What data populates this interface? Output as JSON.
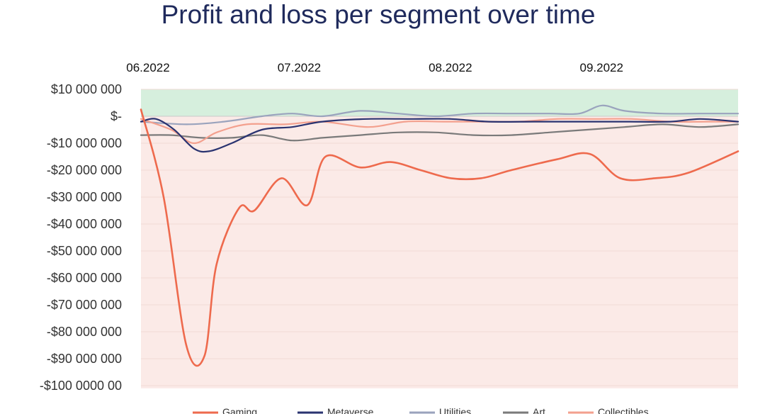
{
  "chart_data": {
    "type": "line",
    "title": "Profit and loss per segment over time",
    "xlabel": "",
    "ylabel": "",
    "x_ticks": [
      "06.2022",
      "07.2022",
      "08.2022",
      "09.2022"
    ],
    "x_tick_positions": [
      0.0,
      1.0,
      2.0,
      3.0
    ],
    "xlim": [
      0.0,
      3.95
    ],
    "y_ticks": [
      10000000,
      0,
      -10000000,
      -20000000,
      -30000000,
      -40000000,
      -50000000,
      -60000000,
      -70000000,
      -80000000,
      -90000000,
      -100000000
    ],
    "y_tick_labels": [
      "$10 000 000",
      "$-",
      "-$10 000 000",
      "-$20 000 000",
      "-$30 000 000",
      "-$40 000 000",
      "-$50 000 000",
      "-$60 000 000",
      "-$70 000 000",
      "-$80 000 000",
      "-$90 000 000",
      "-$100 0000 00"
    ],
    "ylim": [
      -101000000,
      10000000
    ],
    "positive_region_color": "#d6efdd",
    "negative_region_color": "#fbeae7",
    "grid": true,
    "legend_position": "bottom",
    "series": [
      {
        "name": "Gaming",
        "color": "#ee6a4d",
        "x": [
          0.0,
          0.15,
          0.3,
          0.42,
          0.5,
          0.65,
          0.75,
          0.93,
          1.1,
          1.22,
          1.45,
          1.65,
          1.85,
          2.05,
          2.25,
          2.45,
          2.75,
          2.97,
          3.17,
          3.4,
          3.62,
          3.95
        ],
        "y": [
          2500000,
          -30000000,
          -85000000,
          -89000000,
          -55000000,
          -34000000,
          -35000000,
          -23000000,
          -33000000,
          -15000000,
          -19000000,
          -17000000,
          -20000000,
          -23000000,
          -23000000,
          -20000000,
          -16000000,
          -14000000,
          -23000000,
          -23000000,
          -21000000,
          -13000000
        ]
      },
      {
        "name": "Metaverse",
        "color": "#2a3370",
        "x": [
          0.0,
          0.1,
          0.22,
          0.35,
          0.45,
          0.6,
          0.8,
          1.0,
          1.2,
          1.5,
          1.8,
          2.05,
          2.3,
          2.6,
          2.9,
          3.2,
          3.5,
          3.7,
          3.95
        ],
        "y": [
          -2000000,
          -1000000,
          -5000000,
          -12000000,
          -13000000,
          -10000000,
          -5000000,
          -4000000,
          -2000000,
          -1000000,
          -1000000,
          -1000000,
          -2000000,
          -2000000,
          -2000000,
          -2000000,
          -2000000,
          -1000000,
          -2000000
        ]
      },
      {
        "name": "Utilities",
        "color": "#9aa3bd",
        "x": [
          0.0,
          0.3,
          0.55,
          0.8,
          1.0,
          1.2,
          1.45,
          1.7,
          1.95,
          2.2,
          2.45,
          2.7,
          2.9,
          3.05,
          3.2,
          3.45,
          3.7,
          3.95
        ],
        "y": [
          -2000000,
          -3000000,
          -2000000,
          0,
          1000000,
          0,
          2000000,
          1000000,
          0,
          1000000,
          1000000,
          1000000,
          1000000,
          4000000,
          2000000,
          1000000,
          1000000,
          1000000
        ]
      },
      {
        "name": "Art",
        "color": "#7a7a7a",
        "x": [
          0.0,
          0.2,
          0.4,
          0.6,
          0.8,
          1.0,
          1.2,
          1.45,
          1.7,
          1.95,
          2.2,
          2.45,
          2.7,
          2.95,
          3.2,
          3.45,
          3.7,
          3.95
        ],
        "y": [
          -7000000,
          -7000000,
          -8000000,
          -8000000,
          -7000000,
          -9000000,
          -8000000,
          -7000000,
          -6000000,
          -6000000,
          -7000000,
          -7000000,
          -6000000,
          -5000000,
          -4000000,
          -3000000,
          -4000000,
          -3000000
        ]
      },
      {
        "name": "Collectibles",
        "color": "#f3a08e",
        "x": [
          0.0,
          0.2,
          0.35,
          0.5,
          0.7,
          0.95,
          1.2,
          1.5,
          1.75,
          2.0,
          2.25,
          2.5,
          2.75,
          3.0,
          3.25,
          3.5,
          3.75,
          3.95
        ],
        "y": [
          -1000000,
          -5000000,
          -10000000,
          -6000000,
          -3000000,
          -3000000,
          -2000000,
          -4000000,
          -2000000,
          -2000000,
          -2000000,
          -2000000,
          -1000000,
          -1000000,
          -1000000,
          -2000000,
          -2000000,
          -2000000
        ]
      }
    ]
  }
}
